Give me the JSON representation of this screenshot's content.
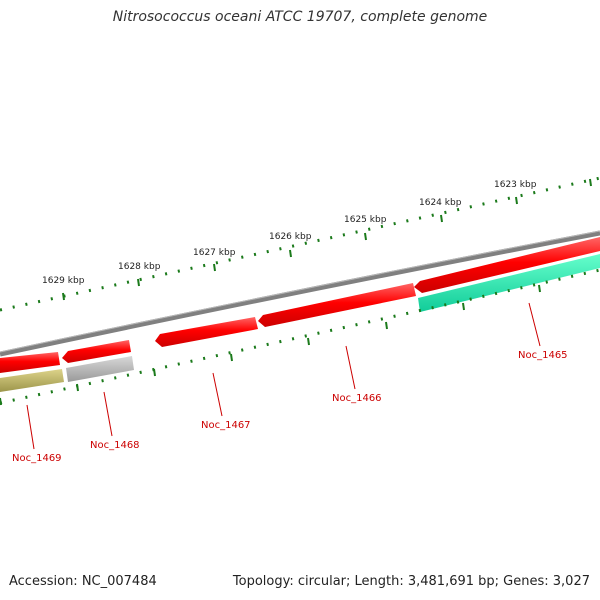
{
  "title": "Nitrosococcus oceani ATCC 19707, complete genome",
  "footer": {
    "accession": "Accession: NC_007484",
    "stats": "Topology: circular; Length: 3,481,691 bp; Genes: 3,027"
  },
  "kbp_labels": [
    "1629 kbp",
    "1628 kbp",
    "1627 kbp",
    "1626 kbp",
    "1625 kbp",
    "1624 kbp",
    "1623 kbp"
  ],
  "genes": [
    {
      "name": "Noc_1465",
      "color": "#ff0000",
      "track": "cds"
    },
    {
      "name": "Noc_1466",
      "color": "#ff0000",
      "track": "cds"
    },
    {
      "name": "Noc_1467",
      "color": "#ff0000",
      "track": "cds"
    },
    {
      "name": "Noc_1468",
      "color": "#ff0000",
      "track": "cds"
    },
    {
      "name": "Noc_1469",
      "color": "#ff0000",
      "track": "cds"
    }
  ],
  "colors": {
    "cds": "#ff0000",
    "backbone": "#808080",
    "teal_feature": "#22ddaa",
    "olive_feature": "#b5ae5a",
    "gray_feature": "#b0b0b0",
    "tick": "#1b7a1b",
    "label": "#cc0000"
  }
}
